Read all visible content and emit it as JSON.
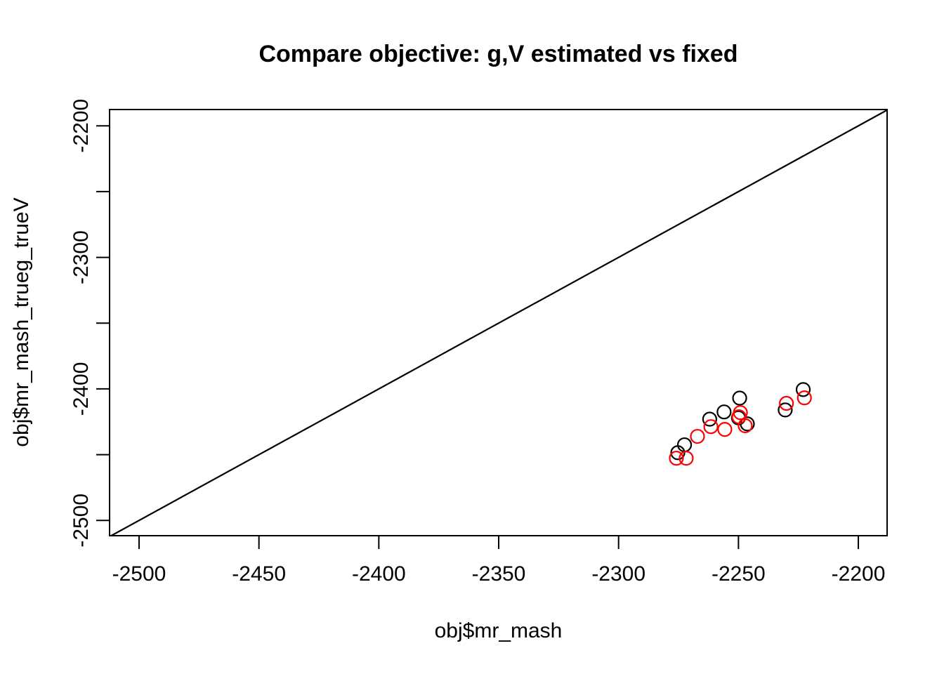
{
  "figure": {
    "background": "#ffffff",
    "foreground": "#000000"
  },
  "chart_data": {
    "type": "scatter",
    "title": "Compare objective: g,V estimated vs fixed",
    "xlabel": "obj$mr_mash",
    "ylabel": "obj$mr_mash_trueg_trueV",
    "xlim": [
      -2512.3,
      -2188.0
    ],
    "ylim": [
      -2511.6,
      -2187.6
    ],
    "grid": false,
    "legend": "none",
    "x_ticks": [
      {
        "value": -2500,
        "label": "-2500"
      },
      {
        "value": -2450,
        "label": "-2450"
      },
      {
        "value": -2400,
        "label": "-2400"
      },
      {
        "value": -2350,
        "label": "-2350"
      },
      {
        "value": -2300,
        "label": "-2300"
      },
      {
        "value": -2250,
        "label": "-2250"
      },
      {
        "value": -2200,
        "label": "-2200"
      }
    ],
    "y_ticks": [
      {
        "value": -2500,
        "label": "-2500"
      },
      {
        "value": -2450,
        "label": ""
      },
      {
        "value": -2400,
        "label": "-2400"
      },
      {
        "value": -2350,
        "label": ""
      },
      {
        "value": -2300,
        "label": "-2300"
      },
      {
        "value": -2250,
        "label": ""
      },
      {
        "value": -2200,
        "label": "-2200"
      }
    ],
    "identity_line": {
      "slope": 1,
      "intercept": 0,
      "color": "#000000"
    },
    "marker": {
      "shape": "open-circle",
      "radius": 9.5,
      "stroke_width": 2.2
    },
    "series": [
      {
        "name": "black-circles",
        "color": "#000000",
        "points": [
          [
            -2223.0,
            -2400.5
          ],
          [
            -2249.5,
            -2407.0
          ],
          [
            -2230.5,
            -2416.0
          ],
          [
            -2256.0,
            -2417.5
          ],
          [
            -2250.0,
            -2422.0
          ],
          [
            -2262.0,
            -2423.0
          ],
          [
            -2246.3,
            -2426.6
          ],
          [
            -2272.5,
            -2442.5
          ],
          [
            -2275.3,
            -2448.5
          ]
        ]
      },
      {
        "name": "red-circles",
        "color": "#FF0000",
        "points": [
          [
            -2222.5,
            -2406.8
          ],
          [
            -2230.0,
            -2411.0
          ],
          [
            -2249.2,
            -2418.0
          ],
          [
            -2249.8,
            -2421.2
          ],
          [
            -2247.2,
            -2428.0
          ],
          [
            -2261.5,
            -2428.7
          ],
          [
            -2255.7,
            -2430.8
          ],
          [
            -2267.1,
            -2436.1
          ],
          [
            -2275.9,
            -2452.7
          ],
          [
            -2271.8,
            -2452.7
          ]
        ]
      }
    ]
  }
}
